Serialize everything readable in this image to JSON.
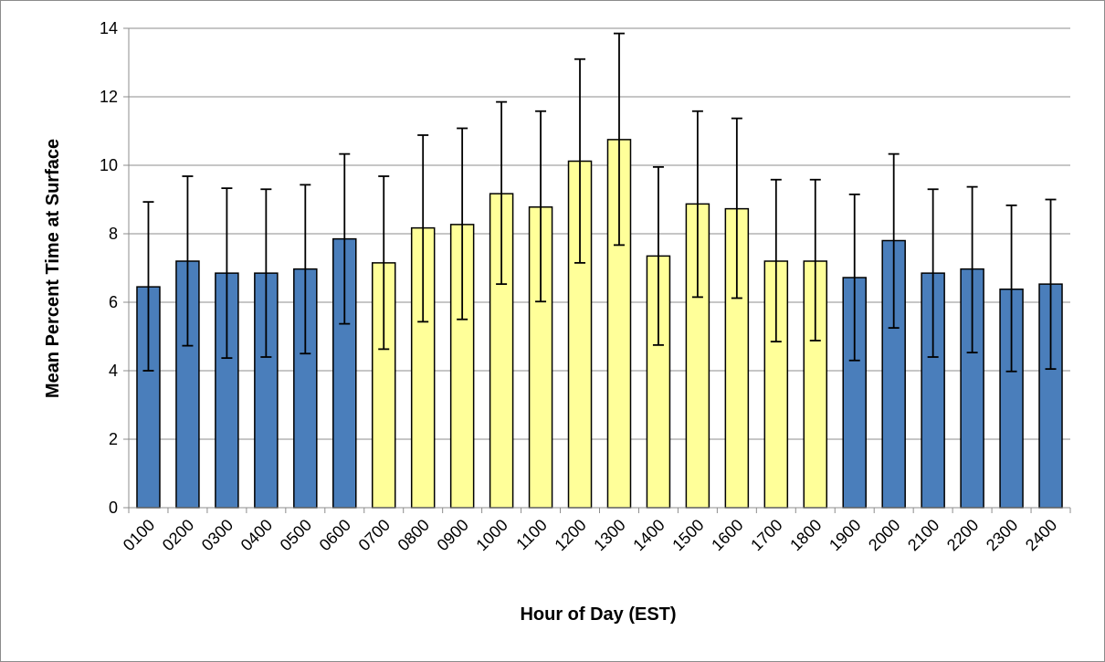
{
  "chart_data": {
    "type": "bar",
    "title": "",
    "xlabel": "Hour of Day (EST)",
    "ylabel": "Mean Percent Time at Surface",
    "ylim": [
      0,
      14
    ],
    "yticks": [
      "0",
      "2",
      "4",
      "6",
      "8",
      "10",
      "12",
      "14"
    ],
    "grid": true,
    "legend": "none",
    "colors": {
      "night": "#4a7ebb",
      "day": "#ffff99",
      "outline": "#000000",
      "grid": "#8c8c8c"
    },
    "categories": [
      "0100",
      "0200",
      "0300",
      "0400",
      "0500",
      "0600",
      "0700",
      "0800",
      "0900",
      "1000",
      "1100",
      "1200",
      "1300",
      "1400",
      "1500",
      "1600",
      "1700",
      "1800",
      "1900",
      "2000",
      "2100",
      "2200",
      "2300",
      "2400"
    ],
    "values": [
      6.45,
      7.2,
      6.85,
      6.85,
      6.97,
      7.85,
      7.15,
      8.17,
      8.27,
      9.17,
      8.78,
      10.12,
      10.75,
      7.35,
      8.87,
      8.73,
      7.2,
      7.2,
      6.72,
      7.8,
      6.85,
      6.97,
      6.38,
      6.53
    ],
    "error_upper": [
      8.93,
      9.68,
      9.33,
      9.3,
      9.43,
      10.33,
      9.68,
      10.88,
      11.08,
      11.85,
      11.58,
      13.1,
      13.85,
      9.95,
      11.58,
      11.37,
      9.58,
      9.58,
      9.15,
      10.33,
      9.3,
      9.37,
      8.83,
      9.0
    ],
    "error_lower": [
      4.0,
      4.73,
      4.37,
      4.4,
      4.5,
      5.37,
      4.63,
      5.43,
      5.5,
      6.53,
      6.02,
      7.15,
      7.67,
      4.75,
      6.15,
      6.12,
      4.85,
      4.88,
      4.3,
      5.25,
      4.4,
      4.53,
      3.98,
      4.05
    ],
    "bar_group": [
      "night",
      "night",
      "night",
      "night",
      "night",
      "night",
      "day",
      "day",
      "day",
      "day",
      "day",
      "day",
      "day",
      "day",
      "day",
      "day",
      "day",
      "day",
      "night",
      "night",
      "night",
      "night",
      "night",
      "night"
    ]
  }
}
